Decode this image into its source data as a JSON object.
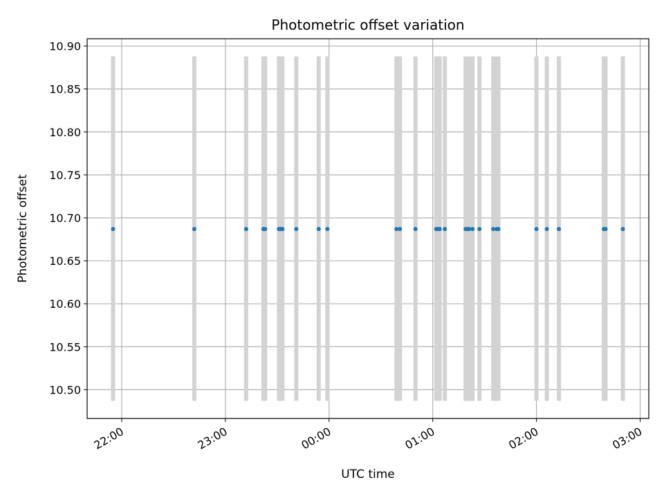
{
  "chart_data": {
    "type": "scatter",
    "title": "Photometric offset variation",
    "xlabel": "UTC time",
    "ylabel": "Photometric offset",
    "xlim": [
      "21:40",
      "03:05"
    ],
    "ylim": [
      10.4665,
      10.9085
    ],
    "x_ticks": [
      "22:00",
      "23:00",
      "00:00",
      "01:00",
      "02:00",
      "03:00"
    ],
    "y_ticks": [
      "10.50",
      "10.55",
      "10.60",
      "10.65",
      "10.70",
      "10.75",
      "10.80",
      "10.85",
      "10.90"
    ],
    "grid": true,
    "band_range": [
      10.487,
      10.888
    ],
    "series": [
      {
        "x": [
          "21:55",
          "22:42",
          "23:12",
          "23:22",
          "23:23",
          "23:31",
          "23:32",
          "23:33",
          "23:41",
          "23:54",
          "23:59",
          "00:39",
          "00:41",
          "00:50",
          "01:02",
          "01:03",
          "01:04",
          "01:07",
          "01:19",
          "01:20",
          "01:21",
          "01:23",
          "01:27",
          "01:35",
          "01:37",
          "01:38",
          "02:00",
          "02:06",
          "02:13",
          "02:39",
          "02:40",
          "02:50"
        ],
        "y": [
          10.687,
          10.687,
          10.687,
          10.687,
          10.687,
          10.687,
          10.687,
          10.687,
          10.687,
          10.687,
          10.687,
          10.687,
          10.687,
          10.687,
          10.687,
          10.687,
          10.687,
          10.687,
          10.687,
          10.687,
          10.687,
          10.687,
          10.687,
          10.687,
          10.687,
          10.687,
          10.687,
          10.687,
          10.687,
          10.687,
          10.687,
          10.687
        ],
        "color": "#1f77b4",
        "band_color": "#d3d3d3"
      }
    ]
  }
}
